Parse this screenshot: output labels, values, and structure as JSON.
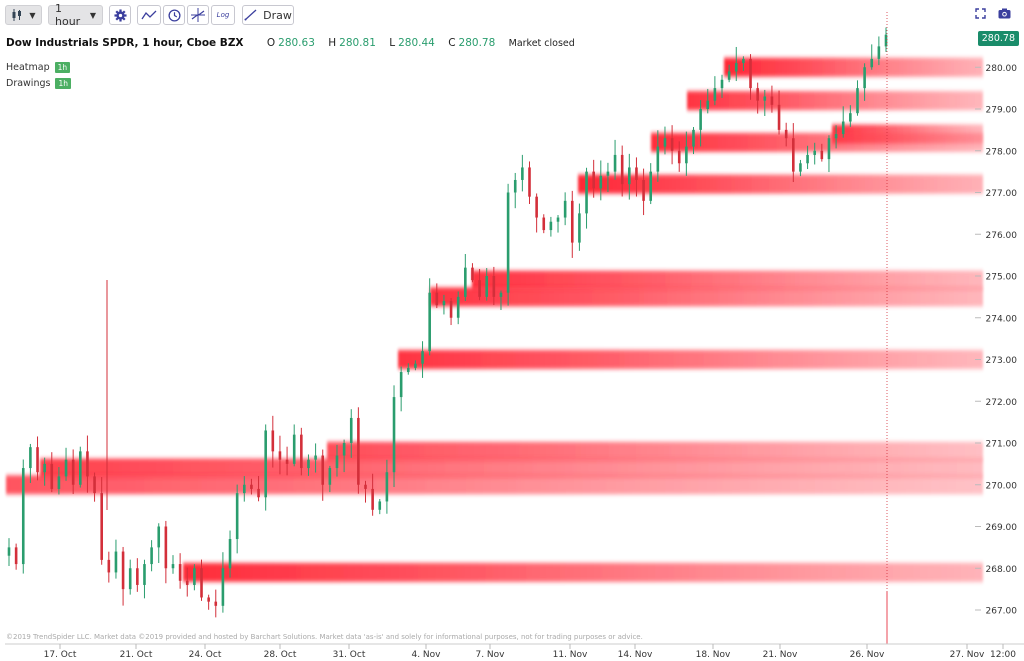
{
  "toolbar": {
    "candle_icon": "candlestick-icon",
    "interval": "1 hour",
    "settings_icon": "gear-icon",
    "indicator_icon": "indicator-icon",
    "clock_icon": "clock-icon",
    "crosshair_icon": "crosshair-icon",
    "log_label": "Log",
    "draw_label": "Draw",
    "fullscreen_icon": "fullscreen-icon",
    "camera_icon": "camera-icon"
  },
  "header": {
    "title": "Dow Industrials SPDR, 1 hour, Cboe BZX",
    "open_label": "O",
    "open": "280.63",
    "high_label": "H",
    "high": "280.81",
    "low_label": "L",
    "low": "280.44",
    "close_label": "C",
    "close": "280.78",
    "status": "Market closed"
  },
  "layers": [
    {
      "label": "Heatmap",
      "badge": "1h"
    },
    {
      "label": "Drawings",
      "badge": "1h"
    }
  ],
  "last_price": "280.78",
  "footer": "©2019 TrendSpider LLC. Market data ©2019 provided and hosted by Barchart Solutions. Market data 'as-is' and solely for informational purposes, not for trading purposes or advice.",
  "colors": {
    "up": "#2a9d6e",
    "down": "#d32f3a",
    "heat": "#ff2030",
    "badge": "#1a8c6a"
  },
  "chart_data": {
    "type": "candlestick",
    "title": "Dow Industrials SPDR, 1 hour, Cboe BZX",
    "ylim": [
      266.5,
      281.5
    ],
    "y_ticks": [
      "267.00",
      "268.00",
      "269.00",
      "270.00",
      "271.00",
      "272.00",
      "273.00",
      "274.00",
      "275.00",
      "276.00",
      "277.00",
      "278.00",
      "279.00",
      "280.00"
    ],
    "x_ticks": [
      "17. Oct",
      "21. Oct",
      "24. Oct",
      "28. Oct",
      "31. Oct",
      "4. Nov",
      "7. Nov",
      "11. Nov",
      "14. Nov",
      "18. Nov",
      "21. Nov",
      "26. Nov",
      "27. Nov",
      "12:00"
    ],
    "grid": false,
    "heatmap_levels": [
      {
        "price": 280.0,
        "from": "19. Nov",
        "intensity": 0.9
      },
      {
        "price": 279.2,
        "from": "18. Nov",
        "intensity": 0.8
      },
      {
        "price": 278.4,
        "from": "22. Nov",
        "intensity": 0.8
      },
      {
        "price": 278.2,
        "from": "15. Nov",
        "intensity": 0.85
      },
      {
        "price": 277.2,
        "from": "12. Nov",
        "intensity": 0.9
      },
      {
        "price": 274.9,
        "from": "7. Nov",
        "intensity": 0.8
      },
      {
        "price": 274.5,
        "from": "5. Nov",
        "intensity": 0.8
      },
      {
        "price": 273.0,
        "from": "4. Nov",
        "intensity": 0.8
      },
      {
        "price": 270.8,
        "from": "31. Oct",
        "intensity": 0.6
      },
      {
        "price": 270.4,
        "from": "18. Oct",
        "intensity": 0.7
      },
      {
        "price": 270.0,
        "from": "16. Oct",
        "intensity": 0.55
      },
      {
        "price": 267.9,
        "from": "23. Oct",
        "intensity": 0.85
      }
    ],
    "closes": [
      268.5,
      268.1,
      270.4,
      270.9,
      270.3,
      270.5,
      269.9,
      270.2,
      270.6,
      270.0,
      270.8,
      270.2,
      269.8,
      268.2,
      267.9,
      268.4,
      267.5,
      268.0,
      267.6,
      268.1,
      268.5,
      269.0,
      268.0,
      268.1,
      267.7,
      267.6,
      268.0,
      267.3,
      267.2,
      267.1,
      268.0,
      268.7,
      269.8,
      270.0,
      269.9,
      269.7,
      271.3,
      270.8,
      270.6,
      270.5,
      271.2,
      270.4,
      270.6,
      270.7,
      270.0,
      270.4,
      270.7,
      271.0,
      271.6,
      270.0,
      269.9,
      269.4,
      269.6,
      270.3,
      272.1,
      272.7,
      272.8,
      272.9,
      273.2,
      274.6,
      274.3,
      274.4,
      274.0,
      274.5,
      275.2,
      274.9,
      274.5,
      275.0,
      274.5,
      274.6,
      277.0,
      277.3,
      277.6,
      276.9,
      276.4,
      276.1,
      276.3,
      276.4,
      276.8,
      275.8,
      276.5,
      277.5,
      277.1,
      277.4,
      277.5,
      277.9,
      277.2,
      277.6,
      277.3,
      276.8,
      277.5,
      278.1,
      278.3,
      278.0,
      277.7,
      278.1,
      278.5,
      279.0,
      279.2,
      279.5,
      279.7,
      279.9,
      280.1,
      280.2,
      279.5,
      279.2,
      279.3,
      279.1,
      278.5,
      278.3,
      277.5,
      277.7,
      277.9,
      278.0,
      277.8,
      278.3,
      278.4,
      278.7,
      278.9,
      279.5,
      280.0,
      280.2,
      280.5,
      280.78
    ]
  }
}
